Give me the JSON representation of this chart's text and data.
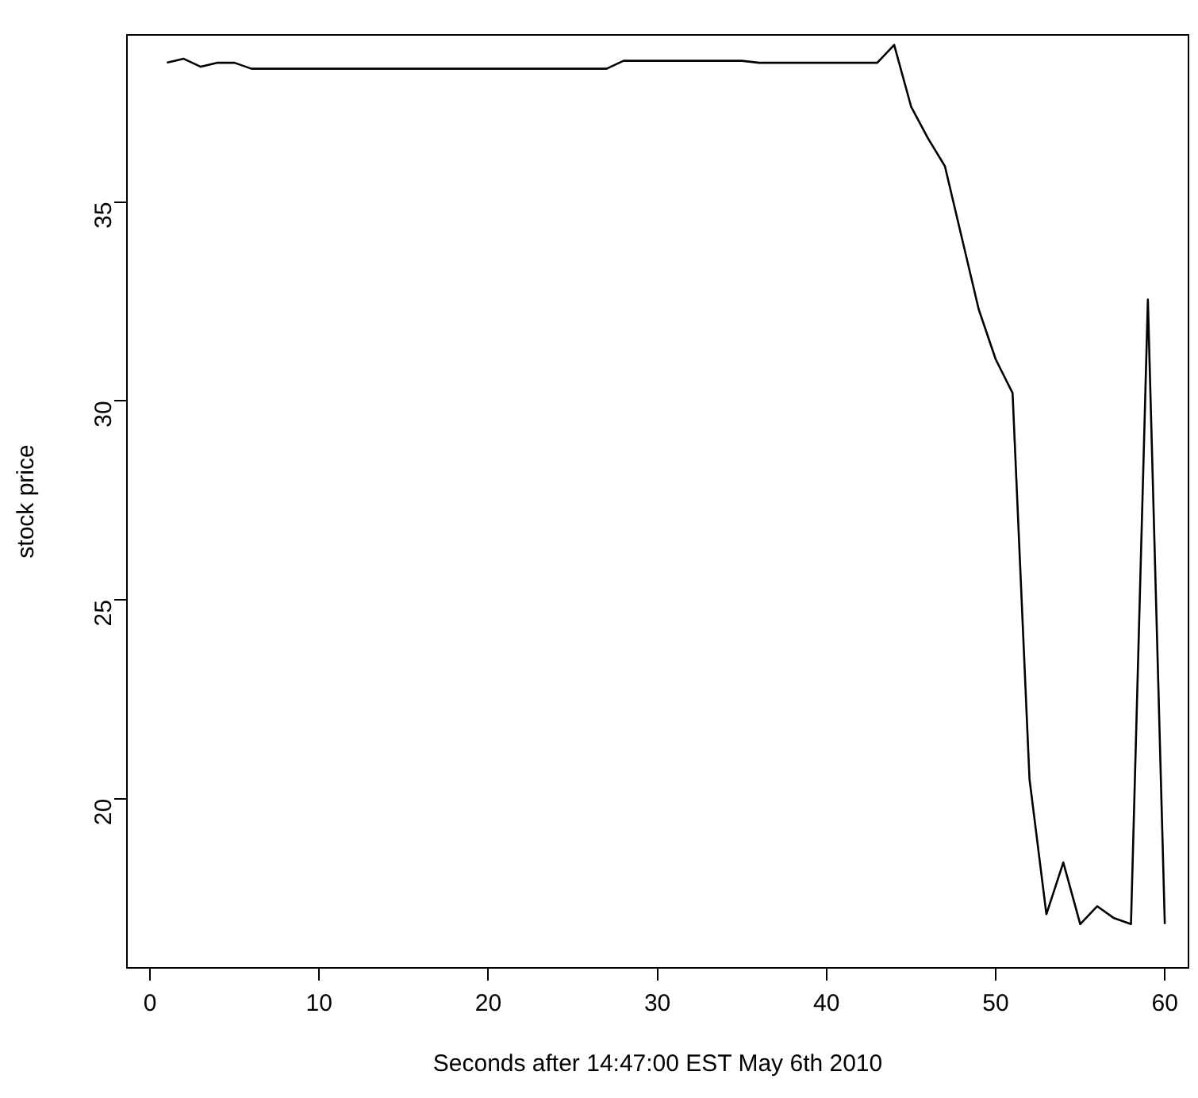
{
  "chart_data": {
    "type": "line",
    "xlabel": "Seconds after 14:47:00 EST May 6th 2010",
    "ylabel": "stock price",
    "x": [
      1,
      2,
      3,
      4,
      5,
      6,
      7,
      8,
      9,
      10,
      11,
      12,
      13,
      14,
      15,
      16,
      17,
      18,
      19,
      20,
      21,
      22,
      23,
      24,
      25,
      26,
      27,
      28,
      29,
      30,
      31,
      32,
      33,
      34,
      35,
      36,
      37,
      38,
      39,
      40,
      41,
      42,
      43,
      44,
      45,
      46,
      47,
      48,
      49,
      50,
      51,
      52,
      53,
      54,
      55,
      56,
      57,
      58,
      59,
      60
    ],
    "series": [
      {
        "color": "#000000",
        "values": [
          38.5,
          38.6,
          38.4,
          38.5,
          38.5,
          38.35,
          38.35,
          38.35,
          38.35,
          38.35,
          38.35,
          38.35,
          38.35,
          38.35,
          38.35,
          38.35,
          38.35,
          38.35,
          38.35,
          38.35,
          38.35,
          38.35,
          38.35,
          38.35,
          38.35,
          38.35,
          38.35,
          38.55,
          38.55,
          38.55,
          38.55,
          38.55,
          38.55,
          38.55,
          38.55,
          38.5,
          38.5,
          38.5,
          38.5,
          38.5,
          38.5,
          38.5,
          38.5,
          38.95,
          37.4,
          36.6,
          35.9,
          34.1,
          32.3,
          31.05,
          30.2,
          20.5,
          17.1,
          18.4,
          16.85,
          17.3,
          17.0,
          16.85,
          32.55,
          16.85
        ]
      }
    ],
    "xlim": [
      -1.36,
      61.4
    ],
    "ylim": [
      15.75,
      39.2
    ],
    "xticks": [
      0,
      10,
      20,
      30,
      40,
      50,
      60
    ],
    "yticks": [
      20,
      25,
      30,
      35
    ],
    "grid": false,
    "legend": false,
    "marker": "none",
    "line_style": "solid"
  }
}
